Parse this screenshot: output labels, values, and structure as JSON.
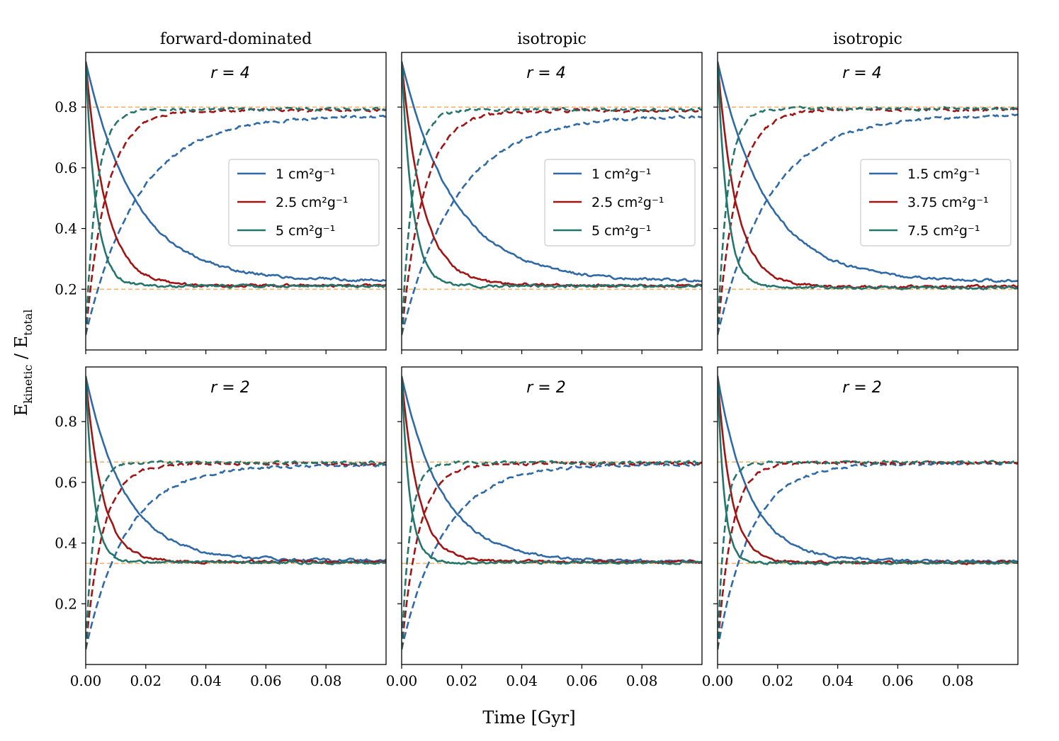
{
  "figure": {
    "xlabel": "Time [Gyr]",
    "ylabel_main": "E",
    "ylabel_sub1": "kinetic",
    "ylabel_sep": " / E",
    "ylabel_sub2": "total"
  },
  "colors": {
    "blue": "#2f6aa6",
    "red": "#a11414",
    "teal": "#24766c",
    "ref": "#f6b26b"
  },
  "chart_data": [
    {
      "type": "line",
      "title": "forward-dominated",
      "annotation": "r = 4",
      "r": 4,
      "xlim": [
        0,
        0.1
      ],
      "ylim": [
        0,
        0.98
      ],
      "xticks": [
        "0.00",
        "0.02",
        "0.04",
        "0.06",
        "0.08"
      ],
      "yticks": [
        "0.2",
        "0.4",
        "0.6",
        "0.8"
      ],
      "reference_lines": [
        0.8,
        0.2
      ],
      "legend": [
        "1 cm²g⁻¹",
        "2.5 cm²g⁻¹",
        "5 cm²g⁻¹"
      ],
      "series": [
        {
          "name": "1 cm²g⁻¹",
          "color": "#2f6aa6",
          "start_solid": 0.95,
          "start_dashed": 0.05,
          "solid_end": 0.228,
          "dashed_end": 0.772,
          "tau": 0.0165
        },
        {
          "name": "2.5 cm²g⁻¹",
          "color": "#a11414",
          "start_solid": 0.95,
          "start_dashed": 0.05,
          "solid_end": 0.212,
          "dashed_end": 0.79,
          "tau": 0.0066
        },
        {
          "name": "5 cm²g⁻¹",
          "color": "#24766c",
          "start_solid": 0.95,
          "start_dashed": 0.05,
          "solid_end": 0.21,
          "dashed_end": 0.793,
          "tau": 0.0034
        }
      ]
    },
    {
      "type": "line",
      "title": "isotropic",
      "annotation": "r = 4",
      "r": 4,
      "xlim": [
        0,
        0.1
      ],
      "ylim": [
        0,
        0.98
      ],
      "xticks": [
        "0.00",
        "0.02",
        "0.04",
        "0.06",
        "0.08"
      ],
      "yticks": [
        "0.2",
        "0.4",
        "0.6",
        "0.8"
      ],
      "reference_lines": [
        0.8,
        0.2
      ],
      "legend": [
        "1 cm²g⁻¹",
        "2.5 cm²g⁻¹",
        "5 cm²g⁻¹"
      ],
      "series": [
        {
          "name": "1 cm²g⁻¹",
          "color": "#2f6aa6",
          "start_solid": 0.95,
          "start_dashed": 0.05,
          "solid_end": 0.226,
          "dashed_end": 0.772,
          "tau": 0.0175
        },
        {
          "name": "2.5 cm²g⁻¹",
          "color": "#a11414",
          "start_solid": 0.95,
          "start_dashed": 0.05,
          "solid_end": 0.213,
          "dashed_end": 0.788,
          "tau": 0.007
        },
        {
          "name": "5 cm²g⁻¹",
          "color": "#24766c",
          "start_solid": 0.95,
          "start_dashed": 0.05,
          "solid_end": 0.21,
          "dashed_end": 0.792,
          "tau": 0.0036
        }
      ]
    },
    {
      "type": "line",
      "title": "isotropic",
      "annotation": "r = 4",
      "r": 4,
      "xlim": [
        0,
        0.1
      ],
      "ylim": [
        0,
        0.98
      ],
      "xticks": [
        "0.00",
        "0.02",
        "0.04",
        "0.06",
        "0.08"
      ],
      "yticks": [
        "0.2",
        "0.4",
        "0.6",
        "0.8"
      ],
      "reference_lines": [
        0.8,
        0.2
      ],
      "legend": [
        "1.5 cm²g⁻¹",
        "3.75 cm²g⁻¹",
        "7.5 cm²g⁻¹"
      ],
      "series": [
        {
          "name": "1.5 cm²g⁻¹",
          "color": "#2f6aa6",
          "start_solid": 0.95,
          "start_dashed": 0.05,
          "solid_end": 0.226,
          "dashed_end": 0.773,
          "tau": 0.0165
        },
        {
          "name": "3.75 cm²g⁻¹",
          "color": "#a11414",
          "start_solid": 0.95,
          "start_dashed": 0.05,
          "solid_end": 0.208,
          "dashed_end": 0.792,
          "tau": 0.0062
        },
        {
          "name": "7.5 cm²g⁻¹",
          "color": "#24766c",
          "start_solid": 0.95,
          "start_dashed": 0.05,
          "solid_end": 0.205,
          "dashed_end": 0.795,
          "tau": 0.0032
        }
      ]
    },
    {
      "type": "line",
      "title": "",
      "annotation": "r = 2",
      "r": 2,
      "xlim": [
        0,
        0.1
      ],
      "ylim": [
        0,
        0.98
      ],
      "xticks": [
        "0.00",
        "0.02",
        "0.04",
        "0.06",
        "0.08"
      ],
      "yticks": [
        "0.2",
        "0.4",
        "0.6",
        "0.8"
      ],
      "reference_lines": [
        0.667,
        0.333
      ],
      "legend": [],
      "series": [
        {
          "name": "1 cm²g⁻¹",
          "color": "#2f6aa6",
          "start_solid": 0.95,
          "start_dashed": 0.05,
          "solid_end": 0.343,
          "dashed_end": 0.657,
          "tau": 0.013
        },
        {
          "name": "2.5 cm²g⁻¹",
          "color": "#a11414",
          "start_solid": 0.95,
          "start_dashed": 0.05,
          "solid_end": 0.338,
          "dashed_end": 0.662,
          "tau": 0.0055
        },
        {
          "name": "5 cm²g⁻¹",
          "color": "#24766c",
          "start_solid": 0.95,
          "start_dashed": 0.05,
          "solid_end": 0.336,
          "dashed_end": 0.665,
          "tau": 0.0027
        }
      ]
    },
    {
      "type": "line",
      "title": "",
      "annotation": "r = 2",
      "r": 2,
      "xlim": [
        0,
        0.1
      ],
      "ylim": [
        0,
        0.98
      ],
      "xticks": [
        "0.00",
        "0.02",
        "0.04",
        "0.06",
        "0.08"
      ],
      "yticks": [
        "0.2",
        "0.4",
        "0.6",
        "0.8"
      ],
      "reference_lines": [
        0.667,
        0.333
      ],
      "legend": [],
      "series": [
        {
          "name": "1 cm²g⁻¹",
          "color": "#2f6aa6",
          "start_solid": 0.95,
          "start_dashed": 0.05,
          "solid_end": 0.34,
          "dashed_end": 0.66,
          "tau": 0.0135
        },
        {
          "name": "2.5 cm²g⁻¹",
          "color": "#a11414",
          "start_solid": 0.95,
          "start_dashed": 0.05,
          "solid_end": 0.338,
          "dashed_end": 0.662,
          "tau": 0.0055
        },
        {
          "name": "5 cm²g⁻¹",
          "color": "#24766c",
          "start_solid": 0.95,
          "start_dashed": 0.05,
          "solid_end": 0.336,
          "dashed_end": 0.665,
          "tau": 0.0027
        }
      ]
    },
    {
      "type": "line",
      "title": "",
      "annotation": "r = 2",
      "r": 2,
      "xlim": [
        0,
        0.1
      ],
      "ylim": [
        0,
        0.98
      ],
      "xticks": [
        "0.00",
        "0.02",
        "0.04",
        "0.06",
        "0.08"
      ],
      "yticks": [
        "0.2",
        "0.4",
        "0.6",
        "0.8"
      ],
      "reference_lines": [
        0.667,
        0.333
      ],
      "legend": [],
      "series": [
        {
          "name": "1.5 cm²g⁻¹",
          "color": "#2f6aa6",
          "start_solid": 0.95,
          "start_dashed": 0.05,
          "solid_end": 0.34,
          "dashed_end": 0.662,
          "tau": 0.0105
        },
        {
          "name": "3.75 cm²g⁻¹",
          "color": "#a11414",
          "start_solid": 0.95,
          "start_dashed": 0.05,
          "solid_end": 0.336,
          "dashed_end": 0.665,
          "tau": 0.0045
        },
        {
          "name": "7.5 cm²g⁻¹",
          "color": "#24766c",
          "start_solid": 0.95,
          "start_dashed": 0.05,
          "solid_end": 0.335,
          "dashed_end": 0.666,
          "tau": 0.0022
        }
      ]
    }
  ]
}
